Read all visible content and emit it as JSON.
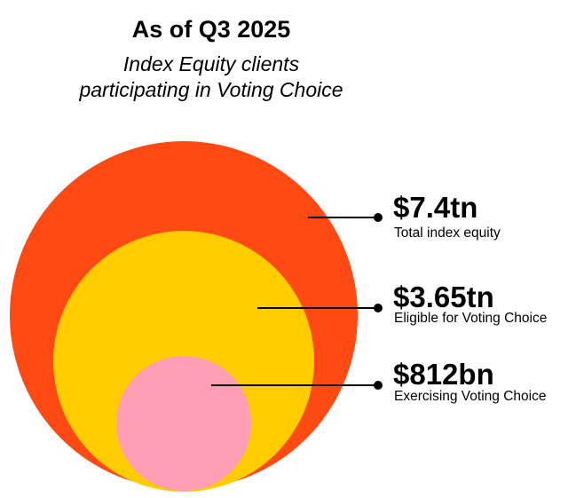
{
  "header": {
    "title": "As of Q3 2025",
    "subtitle_line1": "Index Equity clients",
    "subtitle_line2": "participating in Voting Choice"
  },
  "items": [
    {
      "value": "$7.4tn",
      "label": "Total index equity",
      "color": "#FF4A14"
    },
    {
      "value": "$3.65tn",
      "label": "Eligible for Voting Choice",
      "color": "#FFCC00"
    },
    {
      "value": "$812bn",
      "label": "Exercising Voting Choice",
      "color": "#FF9DB5"
    }
  ]
}
